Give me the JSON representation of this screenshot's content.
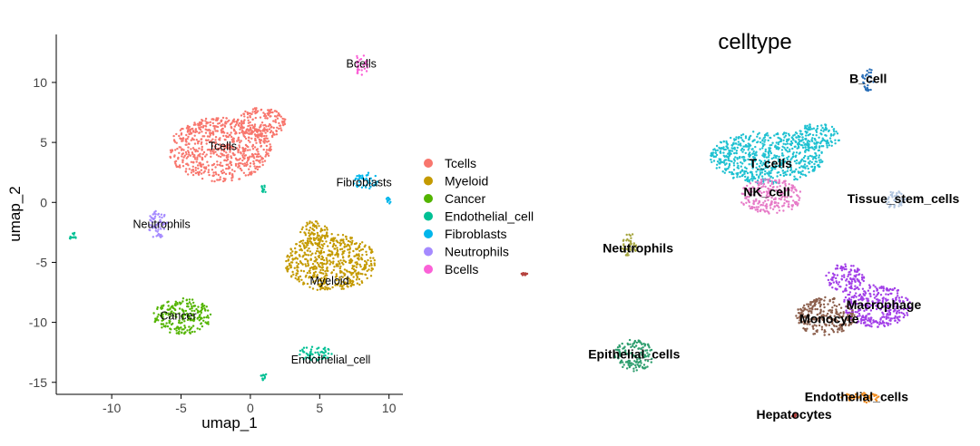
{
  "chart_data": [
    {
      "type": "scatter",
      "title": "",
      "xlabel": "umap_1",
      "ylabel": "umap_2",
      "xlim": [
        -14,
        11
      ],
      "ylim": [
        -16,
        14
      ],
      "x_ticks": [
        -10,
        -5,
        0,
        5,
        10
      ],
      "y_ticks": [
        -15,
        -10,
        -5,
        0,
        5,
        10
      ],
      "x_tick_labels": [
        "-10",
        "-5",
        "0",
        "5",
        "10"
      ],
      "y_tick_labels": [
        "-15",
        "-10",
        "-5",
        "0",
        "5",
        "10"
      ],
      "grid": false,
      "legend_position": "right",
      "series": [
        {
          "name": "Tcells",
          "color": "#F8766D",
          "label": "Tcells",
          "label_x": -2.0,
          "label_y": 4.6,
          "clusters": [
            {
              "cx": -2.2,
              "cy": 4.4,
              "rx": 3.7,
              "ry": 2.7
            },
            {
              "cx": 0.8,
              "cy": 6.6,
              "rx": 1.8,
              "ry": 1.3
            }
          ]
        },
        {
          "name": "Myeloid",
          "color": "#C49A00",
          "label": "Myeloid",
          "label_x": 5.7,
          "label_y": -6.6,
          "clusters": [
            {
              "cx": 5.8,
              "cy": -5.0,
              "rx": 3.3,
              "ry": 2.4
            },
            {
              "cx": 4.6,
              "cy": -2.5,
              "rx": 1.0,
              "ry": 1.0
            }
          ]
        },
        {
          "name": "Cancer",
          "color": "#53B400",
          "label": "Cancer",
          "label_x": -5.2,
          "label_y": -9.5,
          "clusters": [
            {
              "cx": -4.9,
              "cy": -9.5,
              "rx": 2.1,
              "ry": 1.5
            }
          ]
        },
        {
          "name": "Endothelial_cell",
          "color": "#00C094",
          "label": "Endothelial_cell",
          "label_x": 5.8,
          "label_y": -13.2,
          "clusters": [
            {
              "cx": 4.6,
              "cy": -12.6,
              "rx": 1.3,
              "ry": 0.6
            },
            {
              "cx": 1.0,
              "cy": -14.6,
              "rx": 0.3,
              "ry": 0.3
            },
            {
              "cx": 1.0,
              "cy": 1.2,
              "rx": 0.2,
              "ry": 0.4
            },
            {
              "cx": -12.8,
              "cy": -2.8,
              "rx": 0.3,
              "ry": 0.3
            }
          ]
        },
        {
          "name": "Fibroblasts",
          "color": "#00B6EB",
          "label": "Fibroblasts",
          "label_x": 8.2,
          "label_y": 1.6,
          "clusters": [
            {
              "cx": 8.3,
              "cy": 1.8,
              "rx": 0.9,
              "ry": 0.7
            },
            {
              "cx": 10.0,
              "cy": 0.2,
              "rx": 0.2,
              "ry": 0.3
            }
          ]
        },
        {
          "name": "Neutrophils",
          "color": "#A58AFF",
          "label": "Neutrophils",
          "label_x": -6.4,
          "label_y": -1.9,
          "clusters": [
            {
              "cx": -6.7,
              "cy": -1.8,
              "rx": 0.7,
              "ry": 1.2
            }
          ]
        },
        {
          "name": "Bcells",
          "color": "#FB61D7",
          "label": "Bcells",
          "label_x": 8.0,
          "label_y": 11.5,
          "clusters": [
            {
              "cx": 8.0,
              "cy": 11.5,
              "rx": 0.5,
              "ry": 0.9
            }
          ]
        }
      ]
    },
    {
      "type": "scatter",
      "title": "celltype",
      "xlabel": "",
      "ylabel": "",
      "xlim": [
        0,
        10
      ],
      "ylim": [
        0,
        10
      ],
      "grid": false,
      "axes_visible": false,
      "series": [
        {
          "name": "B_cell",
          "color": "#2A6FB8",
          "label": "B_cell",
          "label_x": 7.6,
          "label_y": 9.8,
          "clusters": [
            {
              "cx": 7.6,
              "cy": 9.8,
              "rx": 0.16,
              "ry": 0.32
            }
          ]
        },
        {
          "name": "T_cells",
          "color": "#1FC1D1",
          "label": "T_cells",
          "label_x": 5.1,
          "label_y": 7.4,
          "clusters": [
            {
              "cx": 5.0,
              "cy": 7.6,
              "rx": 1.45,
              "ry": 0.75
            },
            {
              "cx": 6.3,
              "cy": 8.2,
              "rx": 0.6,
              "ry": 0.35
            }
          ]
        },
        {
          "name": "NK_cell",
          "color": "#E67AC7",
          "label": "NK_cell",
          "label_x": 5.0,
          "label_y": 6.6,
          "clusters": [
            {
              "cx": 5.1,
              "cy": 6.5,
              "rx": 0.8,
              "ry": 0.5
            }
          ]
        },
        {
          "name": "Tissue_stem_cells",
          "color": "#B0C4DE",
          "label": "Tissue_stem_cells",
          "label_x": 8.5,
          "label_y": 6.4,
          "clusters": [
            {
              "cx": 8.3,
              "cy": 6.4,
              "rx": 0.3,
              "ry": 0.25
            }
          ]
        },
        {
          "name": "Neutrophils",
          "color": "#A5A53F",
          "label": "Neutrophils",
          "label_x": 1.7,
          "label_y": 5.0,
          "clusters": [
            {
              "cx": 1.5,
              "cy": 5.1,
              "rx": 0.2,
              "ry": 0.35
            }
          ]
        },
        {
          "name": "Macrophage",
          "color": "#A23FE8",
          "label": "Macrophage",
          "label_x": 8.0,
          "label_y": 3.4,
          "clusters": [
            {
              "cx": 7.8,
              "cy": 3.4,
              "rx": 0.9,
              "ry": 0.6
            },
            {
              "cx": 7.0,
              "cy": 4.2,
              "rx": 0.5,
              "ry": 0.4
            }
          ]
        },
        {
          "name": "Monocyte",
          "color": "#8B5E4B",
          "label": "Monocyte",
          "label_x": 6.6,
          "label_y": 3.0,
          "clusters": [
            {
              "cx": 6.5,
              "cy": 3.1,
              "rx": 0.75,
              "ry": 0.55
            }
          ]
        },
        {
          "name": "Epithelial_cells",
          "color": "#2E9E6E",
          "label": "Epithelial_cells",
          "label_x": 1.6,
          "label_y": 2.0,
          "clusters": [
            {
              "cx": 1.6,
              "cy": 2.0,
              "rx": 0.5,
              "ry": 0.45
            }
          ]
        },
        {
          "name": "Endothelial_cells",
          "color": "#F08A1C",
          "label": "Endothelial_cells",
          "label_x": 7.3,
          "label_y": 0.8,
          "clusters": [
            {
              "cx": 7.4,
              "cy": 0.8,
              "rx": 0.5,
              "ry": 0.15
            }
          ]
        },
        {
          "name": "Hepatocytes",
          "color": "#B5423E",
          "label": "Hepatocytes",
          "label_x": 5.7,
          "label_y": 0.3,
          "clusters": [
            {
              "cx": 5.7,
              "cy": 0.3,
              "rx": 0.06,
              "ry": 0.06
            },
            {
              "cx": -1.2,
              "cy": 4.3,
              "rx": 0.12,
              "ry": 0.04
            }
          ]
        }
      ]
    }
  ]
}
